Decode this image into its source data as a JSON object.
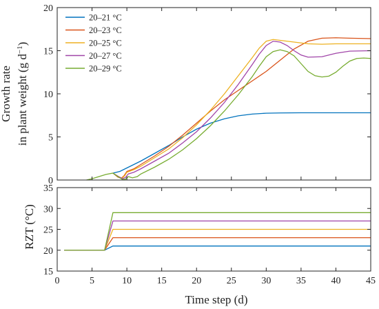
{
  "chart_data": [
    {
      "type": "line",
      "id": "growth",
      "xlabel": "Time step (d)",
      "ylabel_line1": "Growth rate",
      "ylabel_line2_main": "in plant weight (g d",
      "ylabel_line2_sup": "−1",
      "ylabel_line2_end": ")",
      "xlim": [
        0,
        45
      ],
      "ylim": [
        0,
        20
      ],
      "xticks": [
        0,
        5,
        10,
        15,
        20,
        25,
        30,
        35,
        40,
        45
      ],
      "yticks": [
        0,
        5,
        10,
        15,
        20
      ],
      "legend_position": "top-left",
      "series": [
        {
          "name": "20–21 °C",
          "color": "#0072BD",
          "points": [
            [
              8,
              0.8
            ],
            [
              9,
              1.0
            ],
            [
              10,
              1.4
            ],
            [
              12,
              2.2
            ],
            [
              14,
              3.1
            ],
            [
              16,
              4.0
            ],
            [
              18,
              5.0
            ],
            [
              20,
              5.9
            ],
            [
              22,
              6.6
            ],
            [
              24,
              7.1
            ],
            [
              26,
              7.45
            ],
            [
              28,
              7.65
            ],
            [
              30,
              7.75
            ],
            [
              32,
              7.78
            ],
            [
              35,
              7.8
            ],
            [
              40,
              7.8
            ],
            [
              45,
              7.8
            ]
          ]
        },
        {
          "name": "20–23 °C",
          "color": "#D95319",
          "points": [
            [
              8,
              0.8
            ],
            [
              8.7,
              0.35
            ],
            [
              9.2,
              0.2
            ],
            [
              9.6,
              0.5
            ],
            [
              10,
              1.0
            ],
            [
              11,
              1.3
            ],
            [
              12,
              1.8
            ],
            [
              14,
              2.8
            ],
            [
              16,
              3.9
            ],
            [
              18,
              5.2
            ],
            [
              20,
              6.6
            ],
            [
              22,
              8.0
            ],
            [
              24,
              9.3
            ],
            [
              26,
              10.4
            ],
            [
              28,
              11.5
            ],
            [
              30,
              12.6
            ],
            [
              32,
              13.9
            ],
            [
              34,
              15.2
            ],
            [
              36,
              16.1
            ],
            [
              38,
              16.45
            ],
            [
              40,
              16.5
            ],
            [
              42,
              16.45
            ],
            [
              45,
              16.4
            ]
          ]
        },
        {
          "name": "20–25 °C",
          "color": "#EDB120",
          "points": [
            [
              8,
              0.8
            ],
            [
              8.8,
              0.4
            ],
            [
              9.3,
              0.2
            ],
            [
              9.7,
              0.5
            ],
            [
              10,
              0.9
            ],
            [
              11,
              1.2
            ],
            [
              12,
              1.6
            ],
            [
              14,
              2.6
            ],
            [
              16,
              3.6
            ],
            [
              18,
              4.9
            ],
            [
              20,
              6.4
            ],
            [
              22,
              8.1
            ],
            [
              24,
              10.0
            ],
            [
              26,
              12.1
            ],
            [
              28,
              14.2
            ],
            [
              29,
              15.3
            ],
            [
              30,
              16.1
            ],
            [
              31,
              16.3
            ],
            [
              32,
              16.2
            ],
            [
              34,
              16.0
            ],
            [
              36,
              15.8
            ],
            [
              38,
              15.75
            ],
            [
              40,
              15.8
            ],
            [
              45,
              15.8
            ]
          ]
        },
        {
          "name": "20–27 °C",
          "color": "#A044A8",
          "points": [
            [
              8,
              0.8
            ],
            [
              8.9,
              0.35
            ],
            [
              9.4,
              0.15
            ],
            [
              9.8,
              0.3
            ],
            [
              10.2,
              0.7
            ],
            [
              11,
              0.9
            ],
            [
              12,
              1.3
            ],
            [
              14,
              2.2
            ],
            [
              16,
              3.1
            ],
            [
              18,
              4.3
            ],
            [
              20,
              5.6
            ],
            [
              22,
              7.2
            ],
            [
              24,
              9.0
            ],
            [
              26,
              11.1
            ],
            [
              28,
              13.4
            ],
            [
              29,
              14.6
            ],
            [
              30,
              15.6
            ],
            [
              31,
              16.1
            ],
            [
              32,
              16.0
            ],
            [
              33,
              15.6
            ],
            [
              34,
              15.0
            ],
            [
              35,
              14.5
            ],
            [
              36,
              14.25
            ],
            [
              38,
              14.3
            ],
            [
              40,
              14.7
            ],
            [
              42,
              14.95
            ],
            [
              45,
              15.0
            ]
          ]
        },
        {
          "name": "20–29 °C",
          "color": "#77AC30",
          "points": [
            [
              4.2,
              0.0
            ],
            [
              5,
              0.15
            ],
            [
              6,
              0.4
            ],
            [
              7,
              0.65
            ],
            [
              8,
              0.8
            ],
            [
              8.9,
              0.3
            ],
            [
              9.4,
              0.05
            ],
            [
              9.8,
              0.1
            ],
            [
              10.2,
              0.4
            ],
            [
              10.8,
              0.25
            ],
            [
              11.5,
              0.4
            ],
            [
              12,
              0.7
            ],
            [
              14,
              1.5
            ],
            [
              16,
              2.4
            ],
            [
              18,
              3.5
            ],
            [
              20,
              4.8
            ],
            [
              22,
              6.3
            ],
            [
              24,
              8.0
            ],
            [
              26,
              9.9
            ],
            [
              28,
              12.0
            ],
            [
              29,
              13.2
            ],
            [
              30,
              14.3
            ],
            [
              31,
              14.9
            ],
            [
              32,
              15.1
            ],
            [
              33,
              14.9
            ],
            [
              34,
              14.4
            ],
            [
              35,
              13.5
            ],
            [
              36,
              12.6
            ],
            [
              37,
              12.1
            ],
            [
              38,
              11.95
            ],
            [
              39,
              12.05
            ],
            [
              40,
              12.5
            ],
            [
              41,
              13.2
            ],
            [
              42,
              13.8
            ],
            [
              43,
              14.1
            ],
            [
              44,
              14.15
            ],
            [
              45,
              14.1
            ]
          ]
        }
      ]
    },
    {
      "type": "line",
      "id": "rzt",
      "xlabel": "Time step (d)",
      "ylabel": "RZT (°C)",
      "xlim": [
        0,
        45
      ],
      "ylim": [
        15,
        35
      ],
      "xticks": [
        0,
        5,
        10,
        15,
        20,
        25,
        30,
        35,
        40,
        45
      ],
      "yticks": [
        15,
        20,
        25,
        30,
        35
      ],
      "series": [
        {
          "color": "#0072BD",
          "points": [
            [
              1,
              20
            ],
            [
              6.8,
              20
            ],
            [
              8,
              21
            ],
            [
              45,
              21
            ]
          ]
        },
        {
          "color": "#D95319",
          "points": [
            [
              1,
              20
            ],
            [
              6.8,
              20
            ],
            [
              8,
              23
            ],
            [
              45,
              23
            ]
          ]
        },
        {
          "color": "#EDB120",
          "points": [
            [
              1,
              20
            ],
            [
              6.8,
              20
            ],
            [
              8,
              25
            ],
            [
              45,
              25
            ]
          ]
        },
        {
          "color": "#A044A8",
          "points": [
            [
              1,
              20
            ],
            [
              6.8,
              20
            ],
            [
              8,
              27
            ],
            [
              45,
              27
            ]
          ]
        },
        {
          "color": "#77AC30",
          "points": [
            [
              1,
              20
            ],
            [
              6.8,
              20
            ],
            [
              8,
              29
            ],
            [
              45,
              29
            ]
          ]
        }
      ]
    }
  ]
}
